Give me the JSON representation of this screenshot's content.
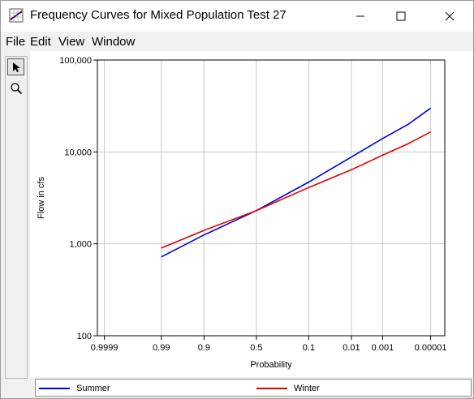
{
  "window": {
    "title": "Frequency Curves for Mixed Population Test 27",
    "controls": [
      "minimize-icon",
      "maximize-icon",
      "close-icon"
    ]
  },
  "menu": {
    "items": [
      "File",
      "Edit",
      "View",
      "Window"
    ]
  },
  "toolbar": {
    "tools": [
      {
        "name": "select-arrow-icon",
        "active": true
      },
      {
        "name": "zoom-magnifier-icon",
        "active": false
      }
    ]
  },
  "chart_data": {
    "type": "line",
    "title": "",
    "xlabel": "Probability",
    "ylabel": "Flow in cfs",
    "x_scale": "normal-probability (exceedance), reversed",
    "y_scale": "log",
    "ylim": [
      100,
      100000
    ],
    "grid": true,
    "x_ticks": [
      {
        "p": 0.9999,
        "label": "0.9999"
      },
      {
        "p": 0.99,
        "label": "0.99"
      },
      {
        "p": 0.9,
        "label": "0.9"
      },
      {
        "p": 0.5,
        "label": "0.5"
      },
      {
        "p": 0.1,
        "label": "0.1"
      },
      {
        "p": 0.01,
        "label": "0.01"
      },
      {
        "p": 0.001,
        "label": "0.001"
      },
      {
        "p": 1e-05,
        "label": "0.00001"
      }
    ],
    "y_ticks": [
      {
        "v": 100,
        "label": "100"
      },
      {
        "v": 1000,
        "label": "1,000"
      },
      {
        "v": 10000,
        "label": "10,000"
      },
      {
        "v": 100000,
        "label": "100,000"
      }
    ],
    "series": [
      {
        "name": "Summer",
        "color": "#0000dd",
        "points": [
          [
            0.99,
            720
          ],
          [
            0.9,
            1250
          ],
          [
            0.5,
            2300
          ],
          [
            0.1,
            4700
          ],
          [
            0.01,
            8800
          ],
          [
            0.001,
            14000
          ],
          [
            0.0001,
            20000
          ],
          [
            1e-05,
            30000
          ]
        ]
      },
      {
        "name": "Winter",
        "color": "#e00000",
        "points": [
          [
            0.99,
            900
          ],
          [
            0.9,
            1400
          ],
          [
            0.5,
            2300
          ],
          [
            0.1,
            4100
          ],
          [
            0.01,
            6400
          ],
          [
            0.001,
            9200
          ],
          [
            0.0001,
            12300
          ],
          [
            1e-05,
            16500
          ]
        ]
      }
    ],
    "legend_placement": "bottom"
  }
}
